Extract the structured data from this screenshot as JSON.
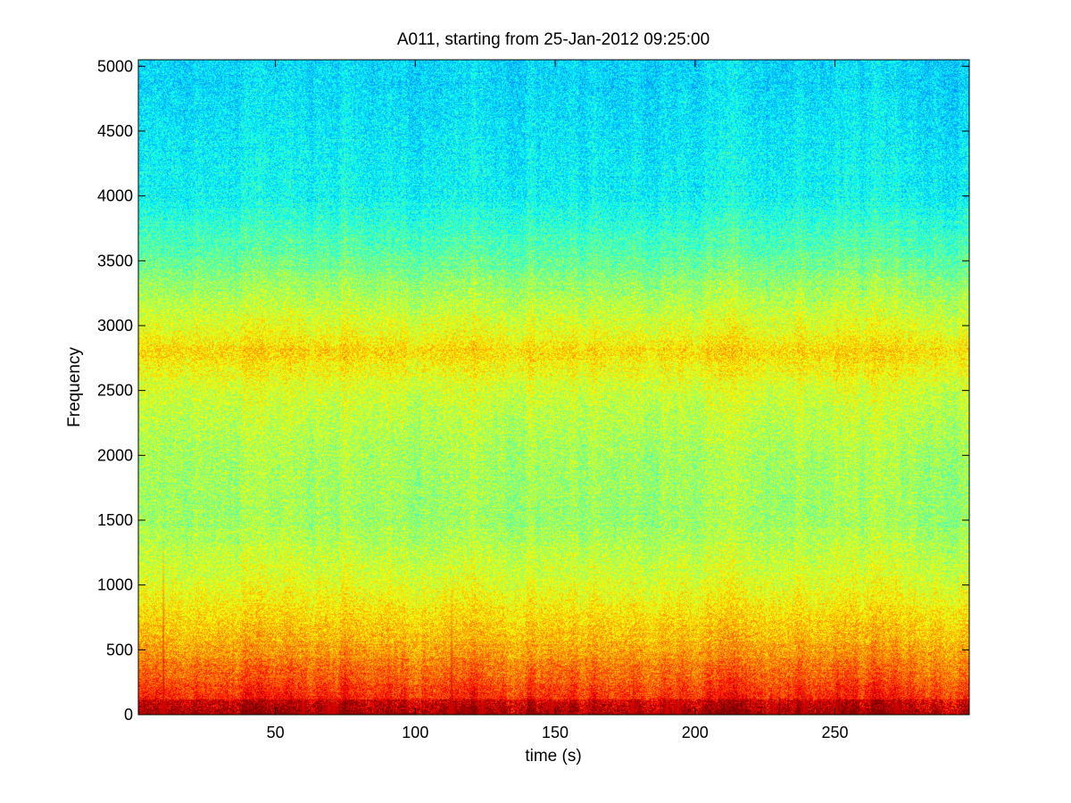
{
  "chart_data": {
    "type": "heatmap",
    "title": "A011, starting from 25-Jan-2012 09:25:00",
    "xlabel": "time (s)",
    "ylabel": "Frequency",
    "xlim": [
      1,
      298
    ],
    "ylim": [
      0,
      5050
    ],
    "xticks": [
      50,
      100,
      150,
      200,
      250
    ],
    "yticks": [
      0,
      500,
      1000,
      1500,
      2000,
      2500,
      3000,
      3500,
      4000,
      4500,
      5000
    ],
    "grid": false,
    "colormap": "jet",
    "colors": {
      "low": "#1fbfff",
      "mid": "#2affd0",
      "high": "#ffff10",
      "peak": "#e00000"
    },
    "band_profile": [
      {
        "frequency": 0,
        "level": 0.9
      },
      {
        "frequency": 200,
        "level": 0.82
      },
      {
        "frequency": 500,
        "level": 0.72
      },
      {
        "frequency": 1000,
        "level": 0.6
      },
      {
        "frequency": 1500,
        "level": 0.53
      },
      {
        "frequency": 2000,
        "level": 0.54
      },
      {
        "frequency": 2500,
        "level": 0.58
      },
      {
        "frequency": 2800,
        "level": 0.66
      },
      {
        "frequency": 3000,
        "level": 0.6
      },
      {
        "frequency": 3500,
        "level": 0.48
      },
      {
        "frequency": 4000,
        "level": 0.38
      },
      {
        "frequency": 5000,
        "level": 0.34
      }
    ],
    "transients": [
      {
        "time": 10,
        "max_frequency": 1400
      },
      {
        "time": 60,
        "max_frequency": 300
      },
      {
        "time": 69,
        "max_frequency": 250
      },
      {
        "time": 71,
        "max_frequency": 200
      },
      {
        "time": 113,
        "max_frequency": 1050
      },
      {
        "time": 124,
        "max_frequency": 200
      },
      {
        "time": 149,
        "max_frequency": 250
      },
      {
        "time": 178,
        "max_frequency": 600
      },
      {
        "time": 190,
        "max_frequency": 300
      },
      {
        "time": 194,
        "max_frequency": 250
      },
      {
        "time": 228,
        "max_frequency": 220
      },
      {
        "time": 239,
        "max_frequency": 500
      },
      {
        "time": 250,
        "max_frequency": 250
      },
      {
        "time": 272,
        "max_frequency": 200
      }
    ]
  }
}
